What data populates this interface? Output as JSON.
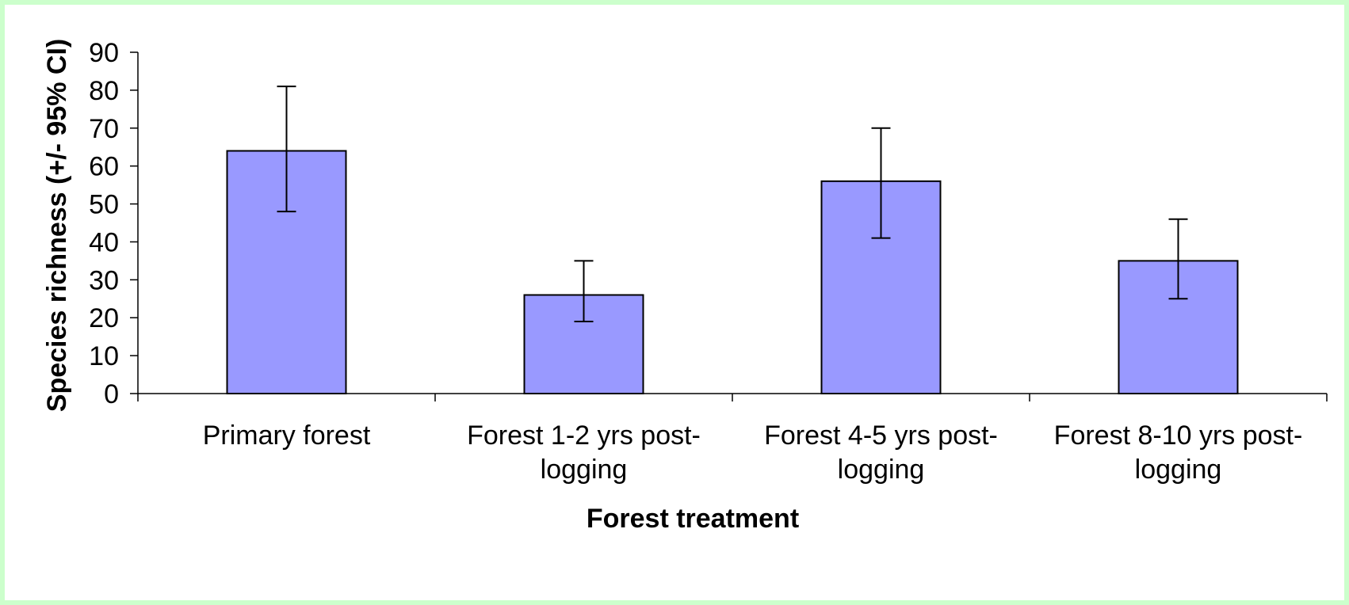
{
  "chart_data": {
    "type": "bar",
    "categories": [
      [
        "Primary forest"
      ],
      [
        "Forest 1-2 yrs post-",
        "logging"
      ],
      [
        "Forest 4-5 yrs post-",
        "logging"
      ],
      [
        "Forest 8-10 yrs post-",
        "logging"
      ]
    ],
    "values": [
      64,
      26,
      56,
      35
    ],
    "error_bars": [
      {
        "low": 48,
        "high": 81
      },
      {
        "low": 19,
        "high": 35
      },
      {
        "low": 41,
        "high": 70
      },
      {
        "low": 25,
        "high": 46
      }
    ],
    "xlabel": "Forest treatment",
    "ylabel": "Species richness (+/- 95% CI)",
    "ylim": [
      0,
      90
    ],
    "yticks": [
      0,
      10,
      20,
      30,
      40,
      50,
      60,
      70,
      80,
      90
    ],
    "grid": false,
    "legend": "none",
    "bar_color": "#9999ff",
    "bar_edge_color": "#000000",
    "background_color": "#ccffcc",
    "plot_background": "#ffffff"
  }
}
